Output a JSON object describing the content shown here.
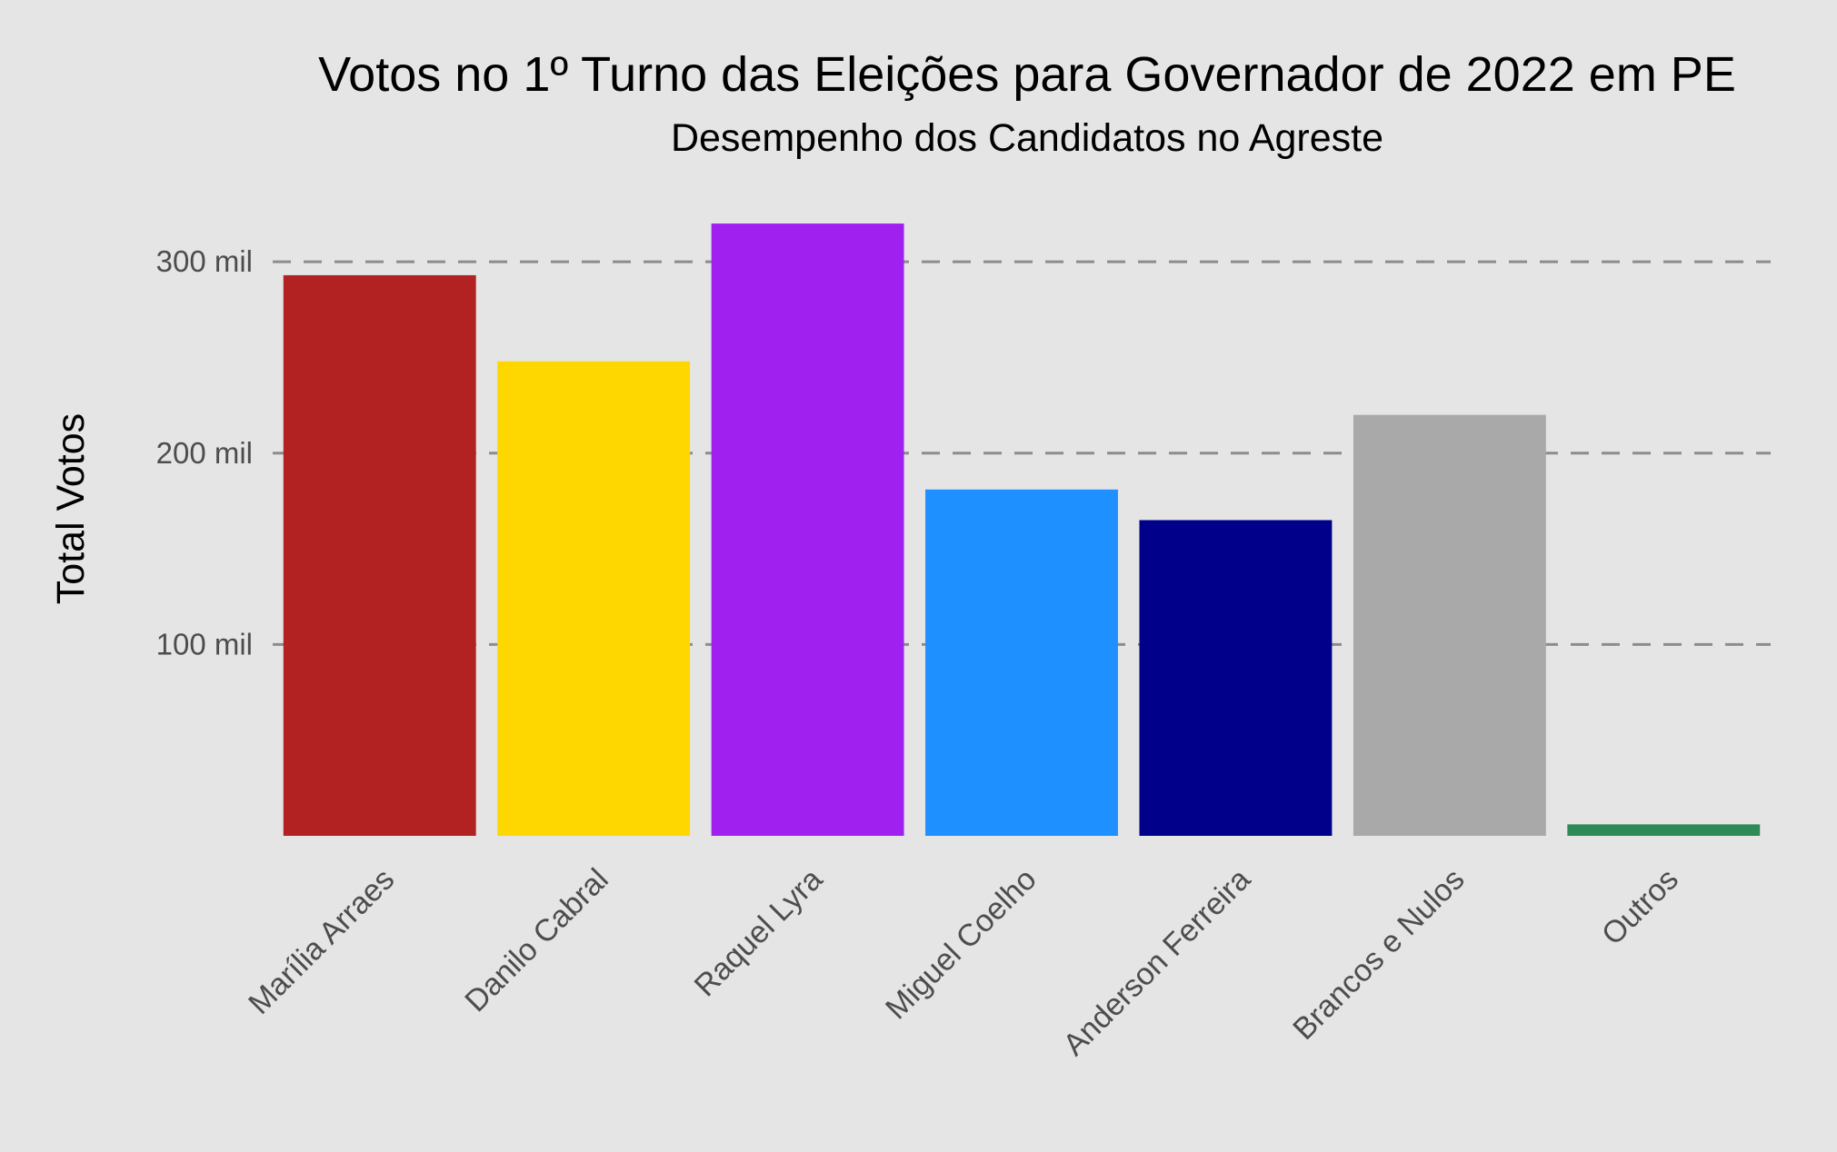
{
  "chart_data": {
    "type": "bar",
    "title": "Votos no 1º Turno das Eleições para Governador de 2022 em PE",
    "subtitle": "Desempenho dos Candidatos no Agreste",
    "xlabel": "",
    "ylabel": "Total Votos",
    "ylim": [
      0,
      330000
    ],
    "yticks": [
      100000,
      200000,
      300000
    ],
    "ytick_labels": [
      "100 mil",
      "200 mil",
      "300 mil"
    ],
    "grid": "horizontal dashed",
    "legend": "none",
    "categories": [
      "Marília Arraes",
      "Danilo Cabral",
      "Raquel Lyra",
      "Miguel Coelho",
      "Anderson Ferreira",
      "Brancos e Nulos",
      "Outros"
    ],
    "values": [
      293000,
      248000,
      320000,
      181000,
      165000,
      220000,
      6000
    ],
    "colors": [
      "#b22222",
      "#ffd700",
      "#a020f0",
      "#1e90ff",
      "#00008b",
      "#a9a9a9",
      "#2e8b57"
    ]
  }
}
